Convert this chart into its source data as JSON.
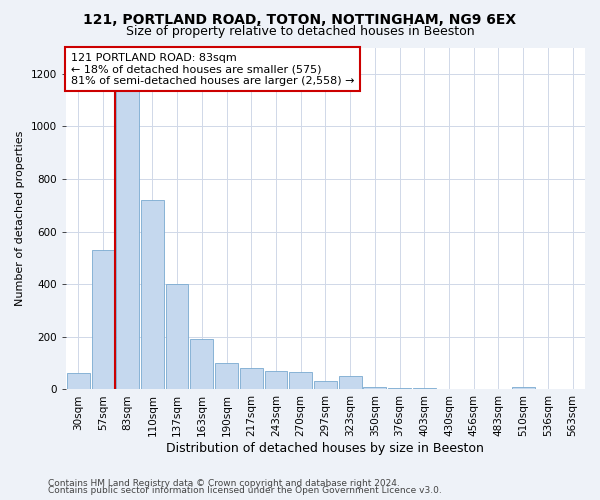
{
  "title_line1": "121, PORTLAND ROAD, TOTON, NOTTINGHAM, NG9 6EX",
  "title_line2": "Size of property relative to detached houses in Beeston",
  "xlabel": "Distribution of detached houses by size in Beeston",
  "ylabel": "Number of detached properties",
  "footer_line1": "Contains HM Land Registry data © Crown copyright and database right 2024.",
  "footer_line2": "Contains public sector information licensed under the Open Government Licence v3.0.",
  "annotation_line1": "121 PORTLAND ROAD: 83sqm",
  "annotation_line2": "← 18% of detached houses are smaller (575)",
  "annotation_line3": "81% of semi-detached houses are larger (2,558) →",
  "bar_color": "#c5d8ee",
  "bar_edge_color": "#7aaad0",
  "highlight_color": "#cc0000",
  "highlight_idx": 2,
  "categories": [
    "30sqm",
    "57sqm",
    "83sqm",
    "110sqm",
    "137sqm",
    "163sqm",
    "190sqm",
    "217sqm",
    "243sqm",
    "270sqm",
    "297sqm",
    "323sqm",
    "350sqm",
    "376sqm",
    "403sqm",
    "430sqm",
    "456sqm",
    "483sqm",
    "510sqm",
    "536sqm",
    "563sqm"
  ],
  "values": [
    62,
    530,
    1200,
    720,
    400,
    190,
    100,
    80,
    70,
    65,
    32,
    50,
    8,
    4,
    4,
    2,
    2,
    1,
    10,
    1,
    1
  ],
  "ylim": [
    0,
    1300
  ],
  "yticks": [
    0,
    200,
    400,
    600,
    800,
    1000,
    1200
  ],
  "background_color": "#eef2f8",
  "plot_bg_color": "#ffffff",
  "grid_color": "#d0d8e8",
  "title_fontsize": 10,
  "subtitle_fontsize": 9,
  "ylabel_fontsize": 8,
  "xlabel_fontsize": 9,
  "tick_fontsize": 7.5,
  "footer_fontsize": 6.5,
  "annotation_fontsize": 8
}
